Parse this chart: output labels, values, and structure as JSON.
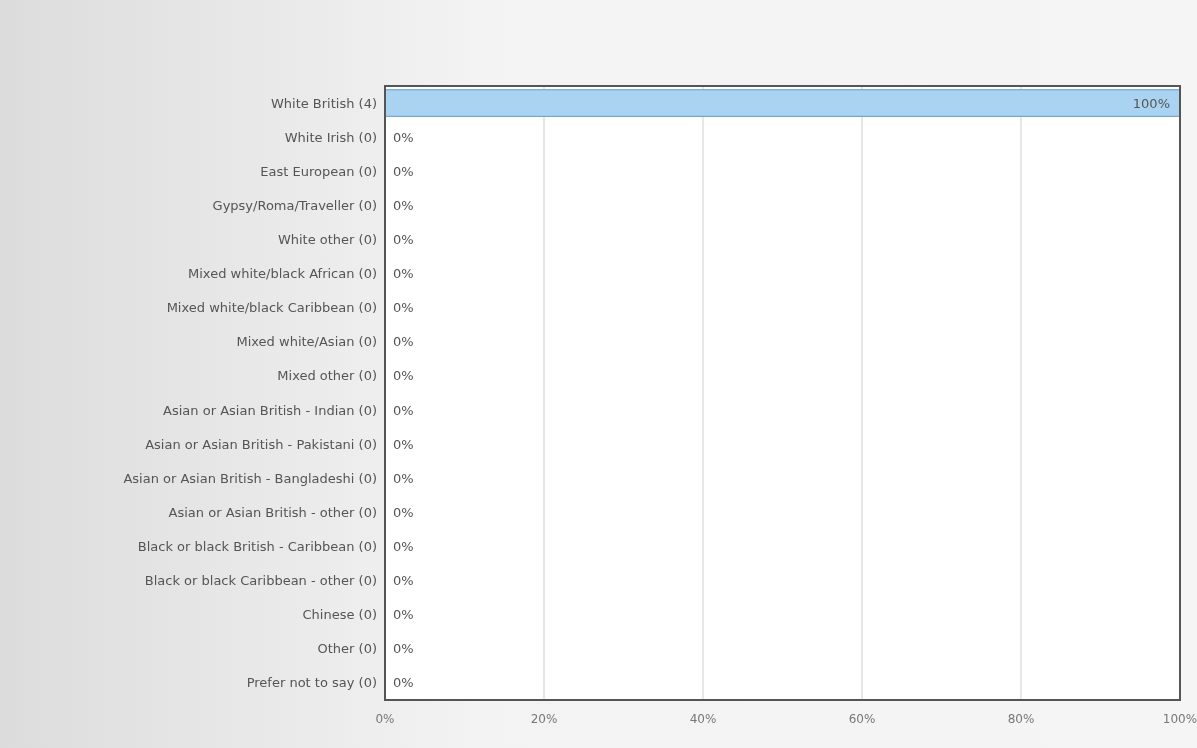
{
  "chart_data": {
    "type": "bar",
    "orientation": "horizontal",
    "categories": [
      "White British (4)",
      "White Irish (0)",
      "East European (0)",
      "Gypsy/Roma/Traveller (0)",
      "White other (0)",
      "Mixed white/black African (0)",
      "Mixed white/black Caribbean (0)",
      "Mixed white/Asian (0)",
      "Mixed other (0)",
      "Asian or Asian British - Indian (0)",
      "Asian or Asian British - Pakistani (0)",
      "Asian or Asian British - Bangladeshi (0)",
      "Asian or Asian British - other (0)",
      "Black or black British - Caribbean (0)",
      "Black or black Caribbean - other (0)",
      "Chinese (0)",
      "Other (0)",
      "Prefer not to say (0)"
    ],
    "values": [
      100,
      0,
      0,
      0,
      0,
      0,
      0,
      0,
      0,
      0,
      0,
      0,
      0,
      0,
      0,
      0,
      0,
      0
    ],
    "value_labels": [
      "100%",
      "0%",
      "0%",
      "0%",
      "0%",
      "0%",
      "0%",
      "0%",
      "0%",
      "0%",
      "0%",
      "0%",
      "0%",
      "0%",
      "0%",
      "0%",
      "0%",
      "0%"
    ],
    "color": "#a9d3f1",
    "xlim": [
      0,
      100
    ],
    "xticks": [
      {
        "value": 0,
        "label": "0%"
      },
      {
        "value": 20,
        "label": "20%"
      },
      {
        "value": 40,
        "label": "40%"
      },
      {
        "value": 60,
        "label": "60%"
      },
      {
        "value": 80,
        "label": "80%"
      },
      {
        "value": 100,
        "label": "100%"
      }
    ],
    "grid": "x"
  }
}
